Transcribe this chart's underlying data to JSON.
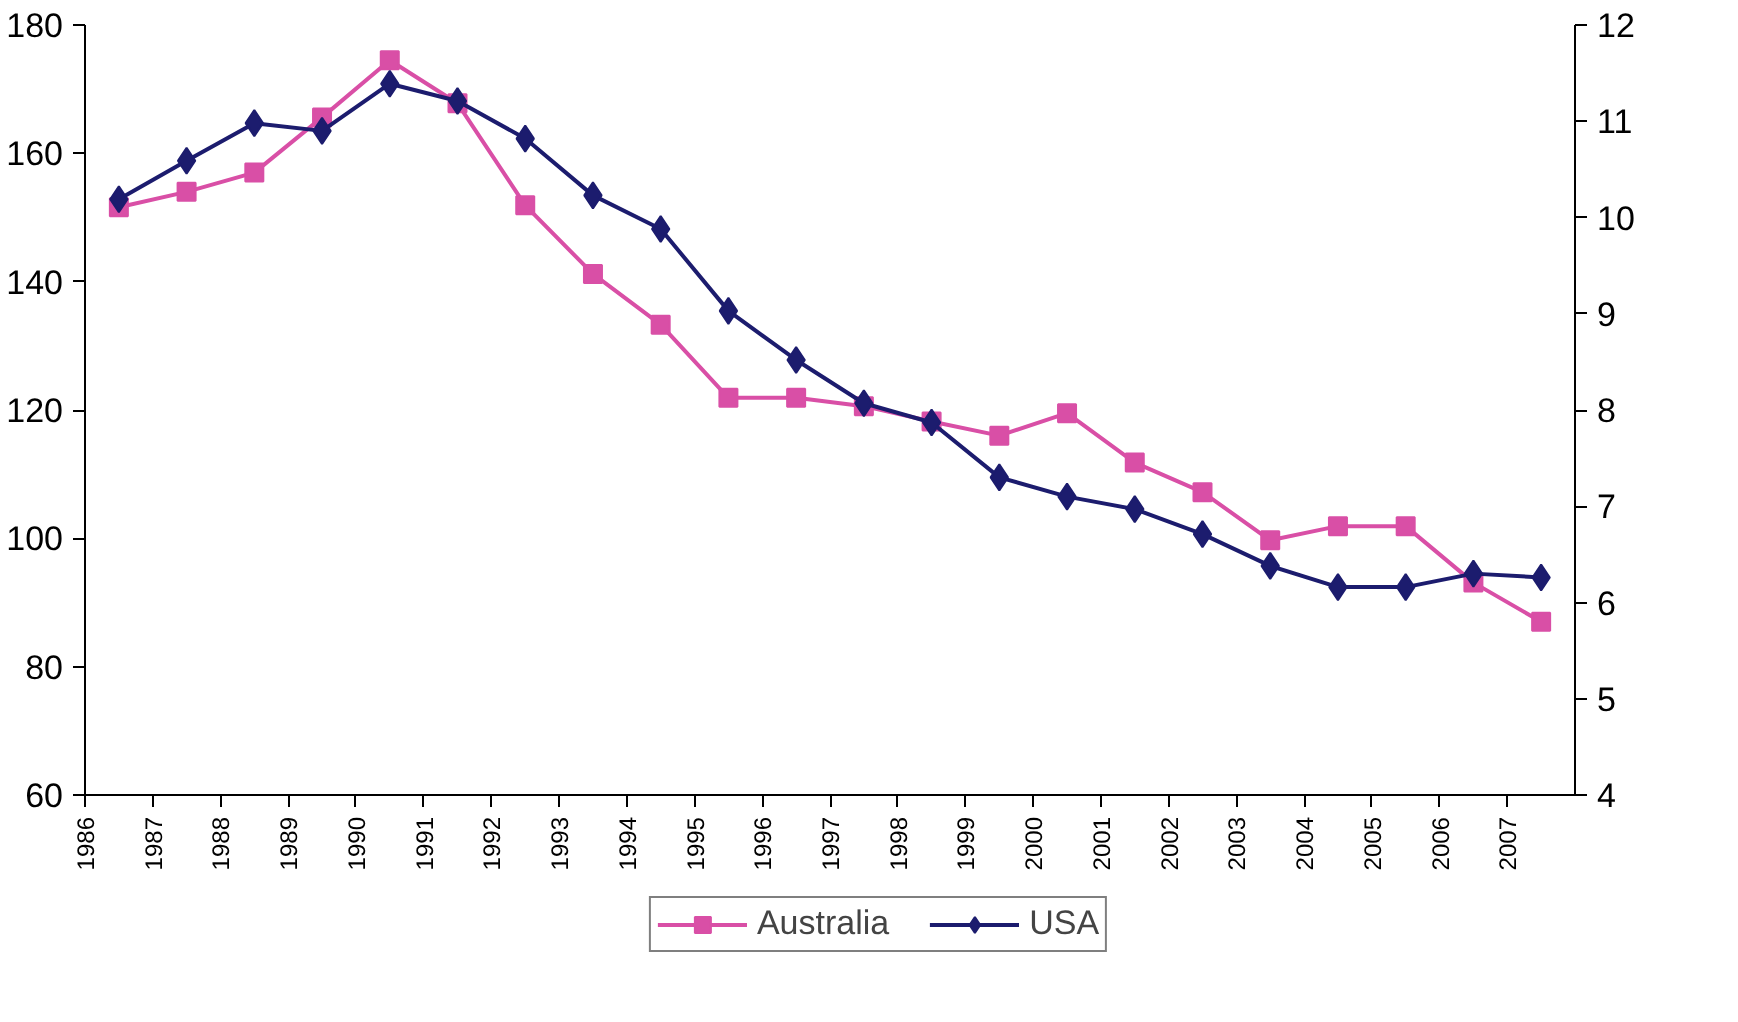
{
  "chart_data": {
    "type": "line",
    "x": [
      1986.5,
      1987.5,
      1988.5,
      1989.5,
      1990.5,
      1991.5,
      1992.5,
      1993.5,
      1994.5,
      1995.5,
      1996.5,
      1997.5,
      1998.5,
      1999.5,
      2000.5,
      2001.5,
      2002.5,
      2003.5,
      2004.5,
      2005.5,
      2006.5,
      2007.5
    ],
    "series": [
      {
        "name": "Australia",
        "color": "#d94fa6",
        "marker": "square",
        "values": [
          151.6,
          154,
          157,
          165.6,
          174.5,
          167.8,
          151.9,
          141.2,
          133.3,
          121.9,
          121.9,
          120.6,
          118.2,
          116,
          119.5,
          111.8,
          107.2,
          99.7,
          101.9,
          101.9,
          93.1,
          87
        ]
      },
      {
        "name": "USA",
        "color": "#1c1c6e",
        "marker": "diamond",
        "axis": "y2",
        "values": [
          10.19,
          10.59,
          10.98,
          10.9,
          11.39,
          11.21,
          10.82,
          10.23,
          9.88,
          9.03,
          8.52,
          8.07,
          7.87,
          7.3,
          7.1,
          6.97,
          6.71,
          6.38,
          6.16,
          6.16,
          6.3,
          6.26
        ]
      }
    ],
    "xlim": [
      1986,
      2008
    ],
    "xticks": [
      1986,
      1987,
      1988,
      1989,
      1990,
      1991,
      1992,
      1993,
      1994,
      1995,
      1996,
      1997,
      1998,
      1999,
      2000,
      2001,
      2002,
      2003,
      2004,
      2005,
      2006,
      2007
    ],
    "ylim": [
      60,
      180
    ],
    "yticks": [
      60,
      80,
      100,
      120,
      140,
      160,
      180
    ],
    "y2lim": [
      4,
      12
    ],
    "y2ticks": [
      4,
      5,
      6,
      7,
      8,
      9,
      10,
      11,
      12
    ],
    "grid": false,
    "legend": "bottom"
  }
}
